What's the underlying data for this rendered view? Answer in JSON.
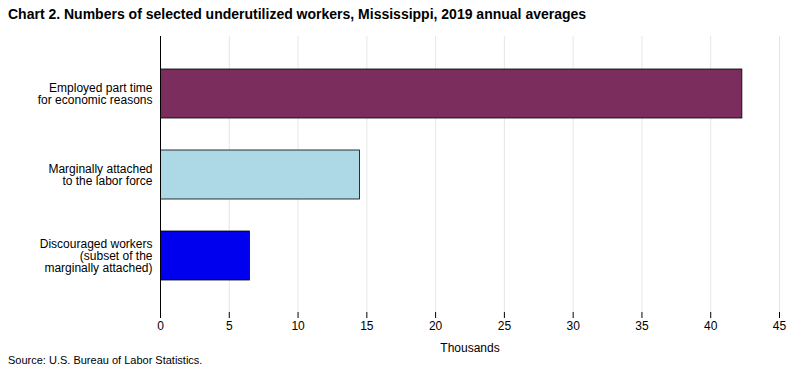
{
  "chart_data": {
    "type": "bar",
    "orientation": "horizontal",
    "title": "Chart 2. Numbers of selected underutilized workers, Mississippi, 2019 annual averages",
    "categories": [
      "Discouraged workers\n(subset of the\nmarginally attached)",
      "Marginally attached\nto the labor force",
      "Employed part time\nfor economic reasons"
    ],
    "values": [
      6.5,
      14.5,
      42.3
    ],
    "colors": [
      "#0000EE",
      "#ADD8E6",
      "#7B2D5E"
    ],
    "xlabel": "Thousands",
    "xlim": [
      0,
      45
    ],
    "xticks": [
      0,
      5,
      10,
      15,
      20,
      25,
      30,
      35,
      40,
      45
    ],
    "grid": true,
    "source": "Source: U.S. Bureau of Labor Statistics."
  }
}
